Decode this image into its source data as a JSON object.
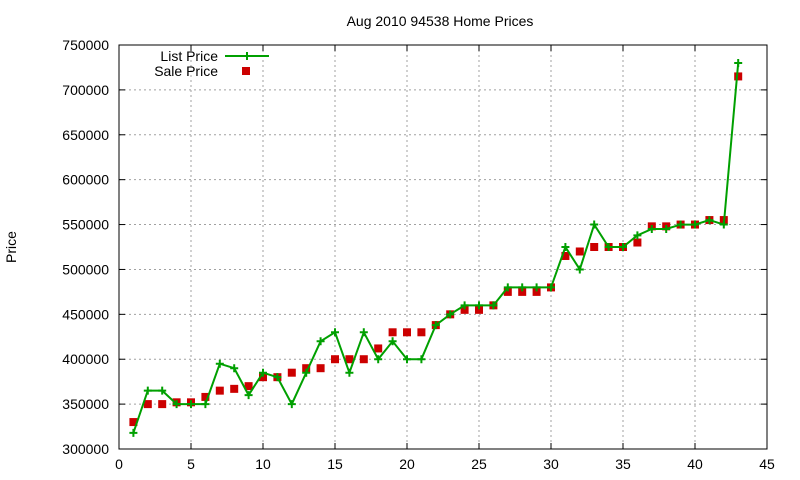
{
  "chart_data": {
    "type": "line",
    "title": "Aug 2010 94538 Home Prices",
    "xlabel": "",
    "ylabel": "Price",
    "xlim": [
      0,
      45
    ],
    "ylim": [
      300000,
      750000
    ],
    "x_ticks": [
      0,
      5,
      10,
      15,
      20,
      25,
      30,
      35,
      40,
      45
    ],
    "y_ticks": [
      300000,
      350000,
      400000,
      450000,
      500000,
      550000,
      600000,
      650000,
      700000,
      750000
    ],
    "grid": true,
    "legend_position": "top-left",
    "series": [
      {
        "name": "List Price",
        "style": "line-points",
        "color": "#00a000",
        "x": [
          1,
          2,
          3,
          4,
          5,
          6,
          7,
          8,
          9,
          10,
          11,
          12,
          13,
          14,
          15,
          16,
          17,
          18,
          19,
          20,
          21,
          22,
          23,
          24,
          25,
          26,
          27,
          28,
          29,
          30,
          31,
          32,
          33,
          34,
          35,
          36,
          37,
          38,
          39,
          40,
          41,
          42,
          43
        ],
        "values": [
          318000,
          365000,
          365000,
          350000,
          350000,
          350000,
          395000,
          390000,
          360000,
          385000,
          380000,
          350000,
          385000,
          420000,
          430000,
          385000,
          430000,
          400000,
          420000,
          400000,
          400000,
          438000,
          450000,
          460000,
          460000,
          460000,
          480000,
          480000,
          480000,
          480000,
          525000,
          500000,
          550000,
          525000,
          525000,
          538000,
          545000,
          545000,
          550000,
          550000,
          555000,
          550000,
          730000
        ]
      },
      {
        "name": "Sale Price",
        "style": "points",
        "color": "#cc0000",
        "x": [
          1,
          2,
          3,
          4,
          5,
          6,
          7,
          8,
          9,
          10,
          11,
          12,
          13,
          14,
          15,
          16,
          17,
          18,
          19,
          20,
          21,
          22,
          23,
          24,
          25,
          26,
          27,
          28,
          29,
          30,
          31,
          32,
          33,
          34,
          35,
          36,
          37,
          38,
          39,
          40,
          41,
          42,
          43
        ],
        "values": [
          330000,
          350000,
          350000,
          352000,
          352000,
          358000,
          365000,
          367000,
          370000,
          380000,
          380000,
          385000,
          390000,
          390000,
          400000,
          400000,
          400000,
          412000,
          430000,
          430000,
          430000,
          438000,
          450000,
          455000,
          455000,
          460000,
          475000,
          475000,
          475000,
          480000,
          515000,
          520000,
          525000,
          525000,
          525000,
          530000,
          548000,
          548000,
          550000,
          550000,
          555000,
          555000,
          715000
        ]
      }
    ]
  }
}
